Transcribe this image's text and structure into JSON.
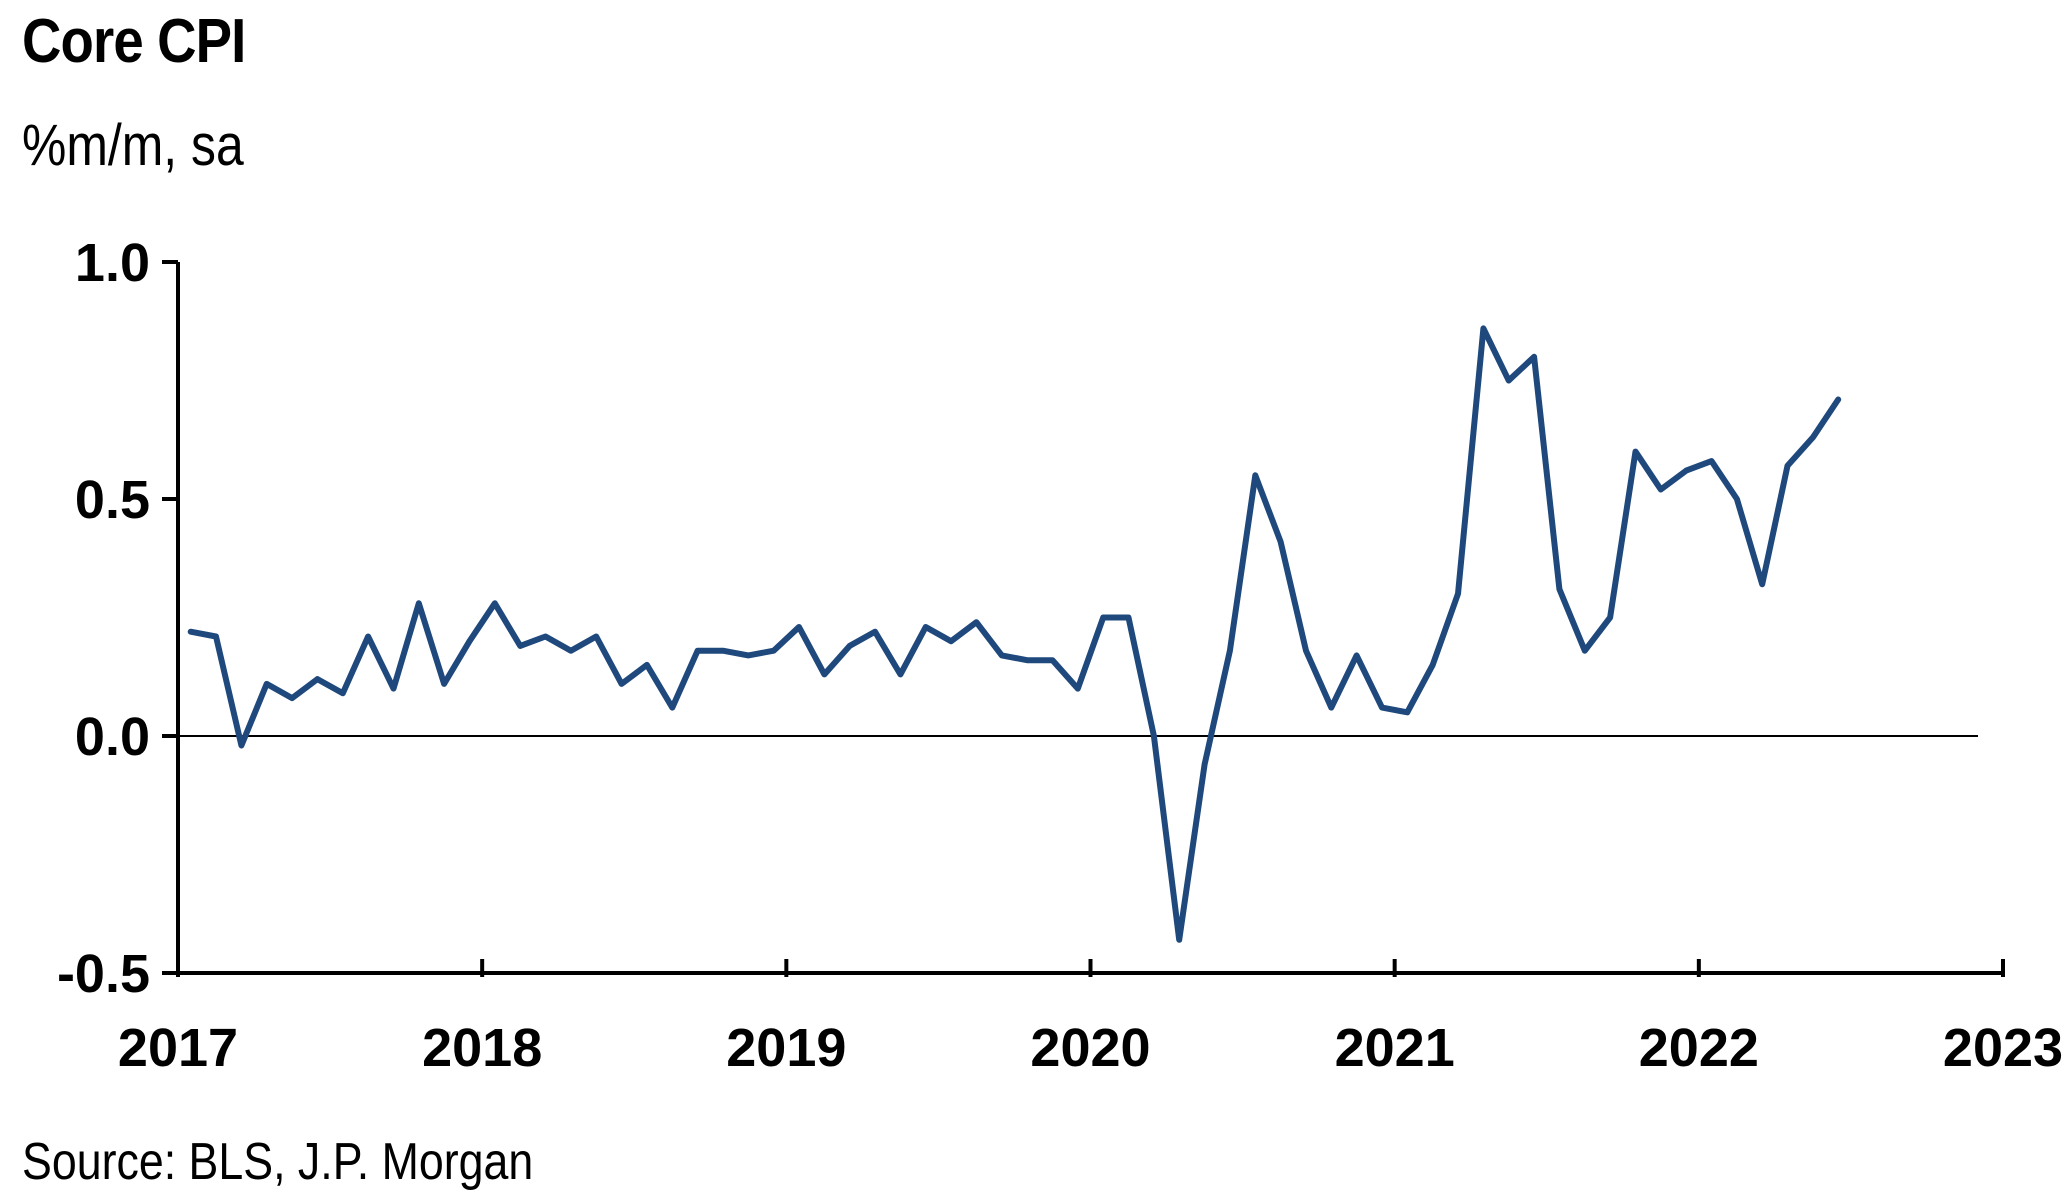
{
  "title": "Core CPI",
  "subtitle": "%m/m, sa",
  "source": "Source: BLS, J.P. Morgan",
  "colors": {
    "series": "#1F497D",
    "axis": "#000000"
  },
  "chart_data": {
    "type": "line",
    "title": "Core CPI",
    "ylabel": "%m/m, sa",
    "xlabel": "",
    "ylim": [
      -0.5,
      1.0
    ],
    "xlim": [
      2017,
      2023
    ],
    "yticks": [
      1.0,
      0.5,
      0.0,
      -0.5
    ],
    "ytick_labels": [
      "1.0",
      "0.5",
      "0.0",
      "-0.5"
    ],
    "xticks": [
      2017,
      2018,
      2019,
      2020,
      2021,
      2022,
      2023
    ],
    "xtick_labels": [
      "2017",
      "2018",
      "2019",
      "2020",
      "2021",
      "2022",
      "2023"
    ],
    "grid": false,
    "zero_line": true,
    "legend": "none",
    "x_start": "2017-01",
    "x_frequency": "monthly",
    "series": [
      {
        "values": [
          0.22,
          0.21,
          -0.02,
          0.11,
          0.08,
          0.12,
          0.09,
          0.21,
          0.1,
          0.28,
          0.11,
          0.2,
          0.28,
          0.19,
          0.21,
          0.18,
          0.21,
          0.11,
          0.15,
          0.06,
          0.18,
          0.18,
          0.17,
          0.18,
          0.23,
          0.13,
          0.19,
          0.22,
          0.13,
          0.23,
          0.2,
          0.24,
          0.17,
          0.16,
          0.16,
          0.1,
          0.25,
          0.25,
          0.0,
          -0.43,
          -0.06,
          0.18,
          0.55,
          0.41,
          0.18,
          0.06,
          0.17,
          0.06,
          0.05,
          0.15,
          0.3,
          0.86,
          0.75,
          0.8,
          0.31,
          0.18,
          0.25,
          0.6,
          0.52,
          0.56,
          0.58,
          0.5,
          0.32,
          0.57,
          0.63,
          0.71
        ]
      }
    ]
  }
}
